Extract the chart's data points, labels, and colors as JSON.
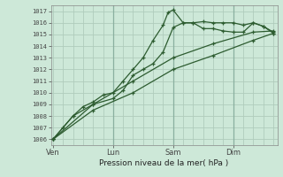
{
  "xlabel": "Pression niveau de la mer( hPa )",
  "bg_color": "#cde8d8",
  "grid_color": "#b0ccbc",
  "line_color": "#2d5c30",
  "ylim": [
    1005.5,
    1017.5
  ],
  "yticks": [
    1006,
    1007,
    1008,
    1009,
    1010,
    1011,
    1012,
    1013,
    1014,
    1015,
    1016,
    1017
  ],
  "xtick_labels": [
    "Ven",
    "Lun",
    "Sam",
    "Dim"
  ],
  "xtick_positions": [
    0,
    3,
    6,
    9
  ],
  "series": [
    {
      "x": [
        0,
        0.5,
        1,
        1.5,
        2,
        2.5,
        3,
        3.5,
        4,
        4.5,
        5,
        5.5,
        5.75,
        6.0,
        6.5,
        7,
        7.5,
        8,
        8.5,
        9,
        9.5,
        10,
        10.5,
        11
      ],
      "y": [
        1006,
        1007,
        1008,
        1008.8,
        1009.2,
        1009.8,
        1010,
        1011,
        1012,
        1013,
        1014.5,
        1015.8,
        1016.9,
        1017.1,
        1016.0,
        1016.0,
        1016.1,
        1016.0,
        1016.0,
        1016.0,
        1015.8,
        1016.0,
        1015.7,
        1015.1
      ]
    },
    {
      "x": [
        0,
        1,
        2,
        3,
        3.5,
        4,
        4.5,
        5,
        5.5,
        6,
        6.5,
        7,
        7.5,
        8,
        8.5,
        9,
        9.5,
        10,
        10.5,
        11
      ],
      "y": [
        1006,
        1008,
        1009,
        1009.5,
        1010.2,
        1011.5,
        1012.0,
        1012.5,
        1013.5,
        1015.6,
        1016.0,
        1016.0,
        1015.5,
        1015.5,
        1015.3,
        1015.2,
        1015.2,
        1016.0,
        1015.7,
        1015.2
      ]
    },
    {
      "x": [
        0,
        2,
        4,
        6,
        8,
        10,
        11
      ],
      "y": [
        1006,
        1009,
        1011,
        1013,
        1014.2,
        1015.2,
        1015.3
      ]
    },
    {
      "x": [
        0,
        2,
        4,
        6,
        8,
        10,
        11
      ],
      "y": [
        1006,
        1008.5,
        1010,
        1012,
        1013.2,
        1014.5,
        1015.1
      ]
    }
  ],
  "vlines_color": "#8ab0a0",
  "vlines": [
    3,
    6,
    9
  ],
  "xlim": [
    -0.1,
    11.2
  ]
}
